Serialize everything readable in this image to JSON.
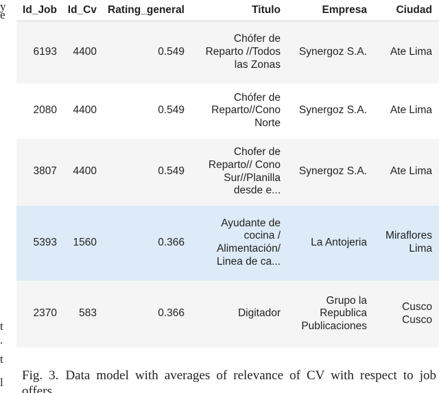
{
  "margin_fragments": {
    "top": [
      "y",
      "e"
    ],
    "bottom": [
      "t",
      ".",
      "t",
      "l"
    ]
  },
  "table": {
    "columns": [
      "Id_Job",
      "Id_Cv",
      "Rating_general",
      "Titulo",
      "Empresa",
      "Ciudad"
    ],
    "rows": [
      {
        "id_job": "6193",
        "id_cv": "4400",
        "rating": "0.549",
        "titulo": [
          "Chófer de",
          "Reparto //Todos",
          "las Zonas"
        ],
        "empresa": [
          "Synergoz S.A."
        ],
        "ciudad": [
          "Ate Lima"
        ]
      },
      {
        "id_job": "2080",
        "id_cv": "4400",
        "rating": "0.549",
        "titulo": [
          "Chófer de",
          "Reparto//Cono",
          "Norte"
        ],
        "empresa": [
          "Synergoz S.A."
        ],
        "ciudad": [
          "Ate Lima"
        ]
      },
      {
        "id_job": "3807",
        "id_cv": "4400",
        "rating": "0.549",
        "titulo": [
          "Chofer de",
          "Reparto// Cono",
          "Sur//Planilla",
          "desde e..."
        ],
        "empresa": [
          "Synergoz S.A."
        ],
        "ciudad": [
          "Ate Lima"
        ]
      },
      {
        "id_job": "5393",
        "id_cv": "1560",
        "rating": "0.366",
        "titulo": [
          "Ayudante de",
          "cocina /",
          "Alimentación/",
          "Linea de ca..."
        ],
        "empresa": [
          "La Antojeria"
        ],
        "ciudad": [
          "Miraflores",
          "Lima"
        ]
      },
      {
        "id_job": "2370",
        "id_cv": "583",
        "rating": "0.366",
        "titulo": [
          "Digitador"
        ],
        "empresa": [
          "Grupo la",
          "Republica",
          "Publicaciones"
        ],
        "ciudad": [
          "Cusco",
          "Cusco"
        ]
      }
    ],
    "highlighted_row": 3,
    "colors": {
      "row_odd": "#f5f5f5",
      "row_even": "#ffffff",
      "row_highlight": "#dcebf7",
      "text": "#222222"
    }
  },
  "caption": {
    "label": "Fig. 3.",
    "text": "Data model with averages of relevance of CV with respect to job offers."
  }
}
